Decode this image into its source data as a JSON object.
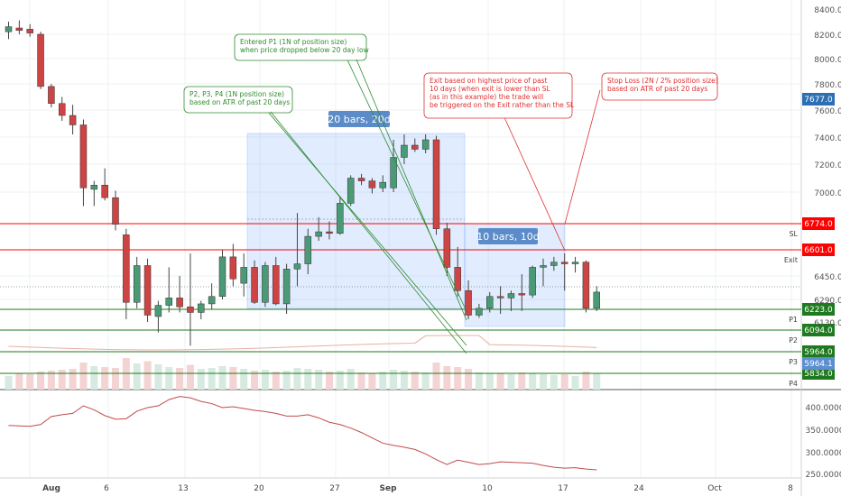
{
  "chart_data": {
    "type": "candlestick",
    "price_axis": {
      "ticks": [
        "8400.0",
        "8200.0",
        "8000.0",
        "7800.0",
        "7600.0",
        "7400.0",
        "7200.0",
        "7000.0",
        "6450.0",
        "6290.0",
        "6130.0"
      ],
      "tick_values": [
        8400,
        8200,
        8000,
        7800,
        7600,
        7400,
        7200,
        7000,
        6450,
        6290,
        6130
      ]
    },
    "indicator_axis": {
      "ticks": [
        "400.0000",
        "350.0000",
        "300.0000",
        "250.0000"
      ],
      "tick_values": [
        400,
        350,
        300,
        250
      ]
    },
    "x_axis": {
      "labels": [
        "Aug",
        "6",
        "13",
        "20",
        "27",
        "Sep",
        "10",
        "17",
        "24",
        "Oct",
        "8"
      ],
      "bold": [
        "Aug",
        "Sep"
      ]
    },
    "candles": [
      {
        "o": 8220,
        "h": 8300,
        "l": 8160,
        "c": 8260
      },
      {
        "o": 8250,
        "h": 8310,
        "l": 8200,
        "c": 8230
      },
      {
        "o": 8240,
        "h": 8280,
        "l": 8180,
        "c": 8210
      },
      {
        "o": 8200,
        "h": 8220,
        "l": 7760,
        "c": 7780
      },
      {
        "o": 7780,
        "h": 7800,
        "l": 7620,
        "c": 7650
      },
      {
        "o": 7650,
        "h": 7700,
        "l": 7520,
        "c": 7560
      },
      {
        "o": 7560,
        "h": 7640,
        "l": 7420,
        "c": 7490
      },
      {
        "o": 7490,
        "h": 7530,
        "l": 6900,
        "c": 7030
      },
      {
        "o": 7020,
        "h": 7080,
        "l": 6900,
        "c": 7050
      },
      {
        "o": 7050,
        "h": 7170,
        "l": 6940,
        "c": 6960
      },
      {
        "o": 6960,
        "h": 7010,
        "l": 6730,
        "c": 6770
      },
      {
        "o": 6700,
        "h": 6740,
        "l": 6150,
        "c": 6270
      },
      {
        "o": 6270,
        "h": 6560,
        "l": 6230,
        "c": 6510
      },
      {
        "o": 6510,
        "h": 6550,
        "l": 6130,
        "c": 6180
      },
      {
        "o": 6170,
        "h": 6280,
        "l": 6080,
        "c": 6250
      },
      {
        "o": 6250,
        "h": 6500,
        "l": 6200,
        "c": 6300
      },
      {
        "o": 6300,
        "h": 6450,
        "l": 6200,
        "c": 6240
      },
      {
        "o": 6240,
        "h": 6580,
        "l": 6000,
        "c": 6200
      },
      {
        "o": 6200,
        "h": 6280,
        "l": 6150,
        "c": 6260
      },
      {
        "o": 6260,
        "h": 6400,
        "l": 6220,
        "c": 6310
      },
      {
        "o": 6310,
        "h": 6600,
        "l": 6290,
        "c": 6560
      },
      {
        "o": 6560,
        "h": 6640,
        "l": 6380,
        "c": 6430
      },
      {
        "o": 6400,
        "h": 6580,
        "l": 6310,
        "c": 6500
      },
      {
        "o": 6500,
        "h": 6540,
        "l": 6260,
        "c": 6270
      },
      {
        "o": 6270,
        "h": 6530,
        "l": 6240,
        "c": 6510
      },
      {
        "o": 6510,
        "h": 6560,
        "l": 6250,
        "c": 6260
      },
      {
        "o": 6260,
        "h": 6520,
        "l": 6190,
        "c": 6490
      },
      {
        "o": 6490,
        "h": 6850,
        "l": 6380,
        "c": 6520
      },
      {
        "o": 6520,
        "h": 6740,
        "l": 6460,
        "c": 6690
      },
      {
        "o": 6690,
        "h": 6820,
        "l": 6660,
        "c": 6720
      },
      {
        "o": 6720,
        "h": 6790,
        "l": 6670,
        "c": 6710
      },
      {
        "o": 6710,
        "h": 6970,
        "l": 6700,
        "c": 6920
      },
      {
        "o": 6920,
        "h": 7120,
        "l": 6900,
        "c": 7100
      },
      {
        "o": 7100,
        "h": 7130,
        "l": 7050,
        "c": 7080
      },
      {
        "o": 7080,
        "h": 7100,
        "l": 6990,
        "c": 7030
      },
      {
        "o": 7030,
        "h": 7120,
        "l": 7000,
        "c": 7070
      },
      {
        "o": 7030,
        "h": 7380,
        "l": 7000,
        "c": 7250
      },
      {
        "o": 7250,
        "h": 7420,
        "l": 7200,
        "c": 7340
      },
      {
        "o": 7340,
        "h": 7390,
        "l": 7290,
        "c": 7310
      },
      {
        "o": 7310,
        "h": 7420,
        "l": 7280,
        "c": 7380
      },
      {
        "o": 7380,
        "h": 7410,
        "l": 6700,
        "c": 6740
      },
      {
        "o": 6740,
        "h": 6780,
        "l": 6450,
        "c": 6500
      },
      {
        "o": 6500,
        "h": 6620,
        "l": 6310,
        "c": 6350
      },
      {
        "o": 6350,
        "h": 6420,
        "l": 6150,
        "c": 6180
      },
      {
        "o": 6180,
        "h": 6260,
        "l": 6160,
        "c": 6230
      },
      {
        "o": 6230,
        "h": 6340,
        "l": 6200,
        "c": 6310
      },
      {
        "o": 6310,
        "h": 6380,
        "l": 6190,
        "c": 6300
      },
      {
        "o": 6300,
        "h": 6350,
        "l": 6210,
        "c": 6330
      },
      {
        "o": 6330,
        "h": 6460,
        "l": 6210,
        "c": 6320
      },
      {
        "o": 6320,
        "h": 6510,
        "l": 6300,
        "c": 6500
      },
      {
        "o": 6500,
        "h": 6550,
        "l": 6380,
        "c": 6510
      },
      {
        "o": 6510,
        "h": 6560,
        "l": 6480,
        "c": 6530
      },
      {
        "o": 6530,
        "h": 6580,
        "l": 6350,
        "c": 6520
      },
      {
        "o": 6520,
        "h": 6560,
        "l": 6470,
        "c": 6530
      },
      {
        "o": 6530,
        "h": 6540,
        "l": 6200,
        "c": 6230
      },
      {
        "o": 6230,
        "h": 6380,
        "l": 6210,
        "c": 6340
      }
    ],
    "indicator_values": [
      358,
      357,
      356,
      360,
      378,
      382,
      385,
      402,
      393,
      380,
      372,
      373,
      390,
      398,
      402,
      416,
      423,
      420,
      412,
      407,
      398,
      400,
      396,
      392,
      389,
      385,
      379,
      379,
      382,
      375,
      365,
      360,
      352,
      342,
      330,
      318,
      313,
      309,
      304,
      294,
      281,
      270,
      280,
      275,
      270,
      272,
      276,
      275,
      274,
      273,
      268,
      264,
      262,
      263,
      260,
      258
    ],
    "volume_values": [
      30,
      35,
      34,
      40,
      42,
      44,
      46,
      60,
      52,
      50,
      48,
      70,
      58,
      63,
      56,
      50,
      48,
      55,
      46,
      48,
      52,
      50,
      46,
      42,
      44,
      40,
      42,
      48,
      46,
      44,
      40,
      42,
      46,
      38,
      36,
      40,
      44,
      42,
      40,
      38,
      60,
      52,
      50,
      46,
      38,
      36,
      35,
      34,
      38,
      36,
      34,
      32,
      34,
      30,
      40,
      36
    ],
    "levels": [
      {
        "label": "SL",
        "value_text": "6774.0",
        "color": "#ff0000"
      },
      {
        "label": "Exit",
        "value_text": "6601.0",
        "color": "#ff0000"
      },
      {
        "label": "P1",
        "value_text": "6223.0",
        "color": "#1f7a1f"
      },
      {
        "label": "P2",
        "value_text": "6094.0",
        "color": "#1f7a1f"
      },
      {
        "label": "P3",
        "value_text": "5964.0",
        "color": "#1f7a1f"
      },
      {
        "label": "P4",
        "value_text": "5834.0",
        "color": "#1f7a1f"
      }
    ],
    "extra_badges": [
      {
        "text": "7677.0",
        "color": "#2d6fb3"
      },
      {
        "text": "5964.1",
        "color": "#5b8fd1"
      }
    ],
    "ranges": [
      {
        "text": "20 bars, 20d"
      },
      {
        "text": "10 bars, 10d"
      }
    ],
    "annotations": [
      {
        "id": "entered-p1",
        "lines": [
          "Entered P1 (1N of position size)",
          "when price dropped below 20 day low"
        ],
        "color": "#2e8b2e"
      },
      {
        "id": "p2-p3-p4",
        "lines": [
          "P2, P3, P4 (1N position size)",
          "based on ATR of past 20 days"
        ],
        "color": "#2e8b2e"
      },
      {
        "id": "exit-note",
        "lines": [
          "Exit based on highest price of past",
          "10 days (when exit is lower than SL",
          "(as in this example) the trade will",
          "be triggered on the Exit rather than the SL"
        ],
        "color": "#e03030"
      },
      {
        "id": "stop-loss",
        "lines": [
          "Stop Loss (2N / 2% position size)",
          "based on ATR of past 20 days"
        ],
        "color": "#e03030"
      }
    ],
    "colors": {
      "up": "#4a9a76",
      "down": "#cc4444",
      "up_volume": "#d6eadf",
      "down_volume": "#f4d3d3",
      "indicator": "#c24a4a",
      "ma": "#e8b0a0"
    }
  }
}
